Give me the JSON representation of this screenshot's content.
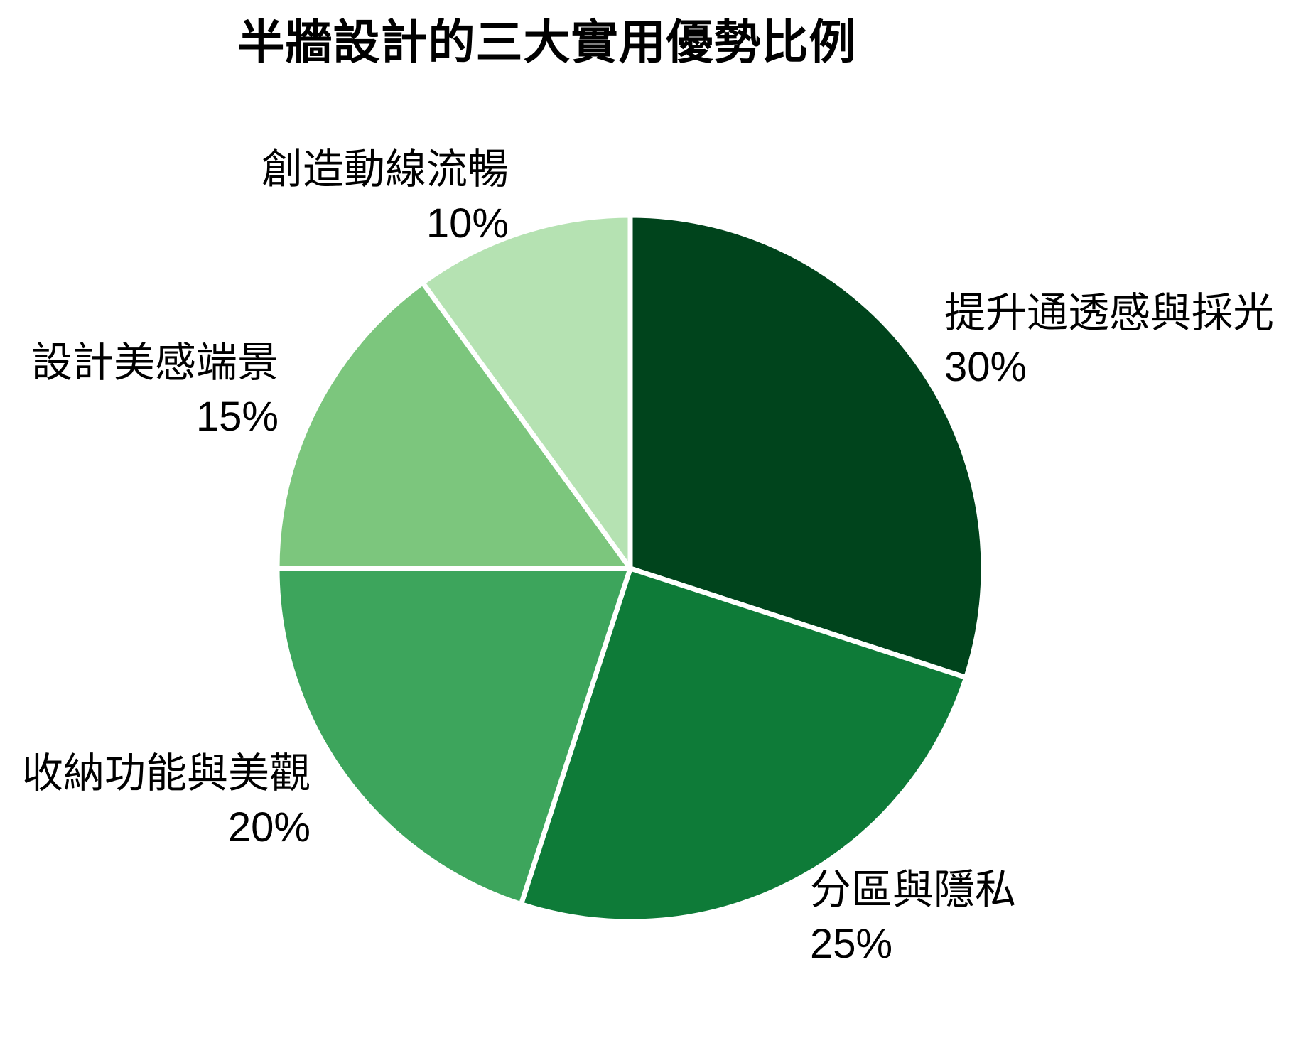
{
  "title": "半牆設計的三大實用優勢比例",
  "chart_data": {
    "type": "pie",
    "title": "半牆設計的三大實用優勢比例",
    "start_angle": "12 o'clock",
    "direction": "clockwise",
    "legend": "none",
    "label_position": "outside",
    "slices": [
      {
        "label": "提升通透感與採光",
        "value": 30,
        "pct_label": "30%",
        "color": "#00441c"
      },
      {
        "label": "分區與隱私",
        "value": 25,
        "pct_label": "25%",
        "color": "#0e7b38"
      },
      {
        "label": "收納功能與美觀",
        "value": 20,
        "pct_label": "20%",
        "color": "#3da55c"
      },
      {
        "label": "設計美感端景",
        "value": 15,
        "pct_label": "15%",
        "color": "#7cc67d"
      },
      {
        "label": "創造動線流暢",
        "value": 10,
        "pct_label": "10%",
        "color": "#b5e2b2"
      }
    ],
    "wedge_edge_color": "#ffffff"
  }
}
